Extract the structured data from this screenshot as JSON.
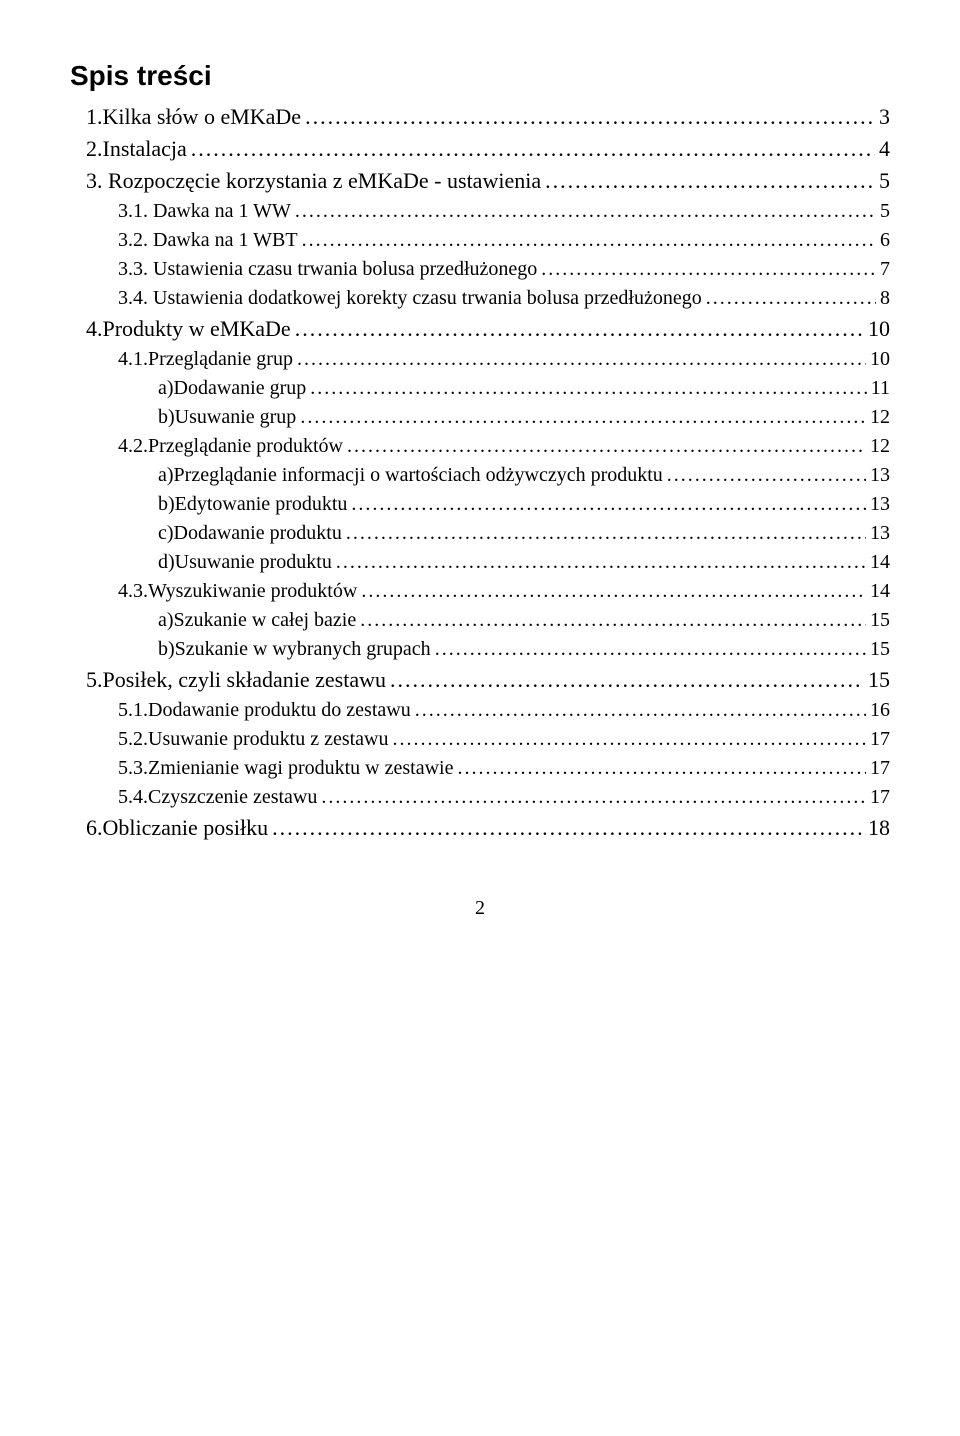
{
  "title": "Spis treści",
  "page_number": "2",
  "toc": [
    {
      "level": 0,
      "label": "1.Kilka słów o eMKaDe",
      "page": "3"
    },
    {
      "level": 0,
      "label": "2.Instalacja",
      "page": "4"
    },
    {
      "level": 0,
      "label": "3. Rozpoczęcie korzystania z eMKaDe - ustawienia",
      "page": "5"
    },
    {
      "level": 1,
      "label": "3.1. Dawka na 1 WW",
      "page": "5"
    },
    {
      "level": 1,
      "label": "3.2. Dawka na 1 WBT",
      "page": "6"
    },
    {
      "level": 1,
      "label": "3.3. Ustawienia czasu trwania bolusa przedłużonego",
      "page": "7"
    },
    {
      "level": 1,
      "label": "3.4. Ustawienia dodatkowej korekty czasu trwania bolusa przedłużonego",
      "page": "8"
    },
    {
      "level": 0,
      "label": "4.Produkty w eMKaDe",
      "page": "10"
    },
    {
      "level": 1,
      "label": "4.1.Przeglądanie grup",
      "page": "10"
    },
    {
      "level": 2,
      "label": "a)Dodawanie grup",
      "page": "11"
    },
    {
      "level": 2,
      "label": "b)Usuwanie grup",
      "page": "12"
    },
    {
      "level": 1,
      "label": "4.2.Przeglądanie produktów",
      "page": "12"
    },
    {
      "level": 2,
      "label": "a)Przeglądanie informacji o wartościach odżywczych produktu",
      "page": "13"
    },
    {
      "level": 2,
      "label": "b)Edytowanie produktu",
      "page": "13"
    },
    {
      "level": 2,
      "label": "c)Dodawanie produktu",
      "page": "13"
    },
    {
      "level": 2,
      "label": "d)Usuwanie produktu",
      "page": "14"
    },
    {
      "level": 1,
      "label": "4.3.Wyszukiwanie produktów",
      "page": "14"
    },
    {
      "level": 2,
      "label": "a)Szukanie w całej bazie",
      "page": "15"
    },
    {
      "level": 2,
      "label": "b)Szukanie w wybranych grupach",
      "page": "15"
    },
    {
      "level": 0,
      "label": "5.Posiłek, czyli składanie zestawu",
      "page": "15"
    },
    {
      "level": 1,
      "label": "5.1.Dodawanie produktu do zestawu",
      "page": "16"
    },
    {
      "level": 1,
      "label": "5.2.Usuwanie produktu z zestawu",
      "page": "17"
    },
    {
      "level": 1,
      "label": "5.3.Zmienianie wagi produktu w zestawie",
      "page": "17"
    },
    {
      "level": 1,
      "label": "5.4.Czyszczenie zestawu",
      "page": "17"
    },
    {
      "level": 0,
      "label": "6.Obliczanie posiłku",
      "page": "18"
    }
  ]
}
